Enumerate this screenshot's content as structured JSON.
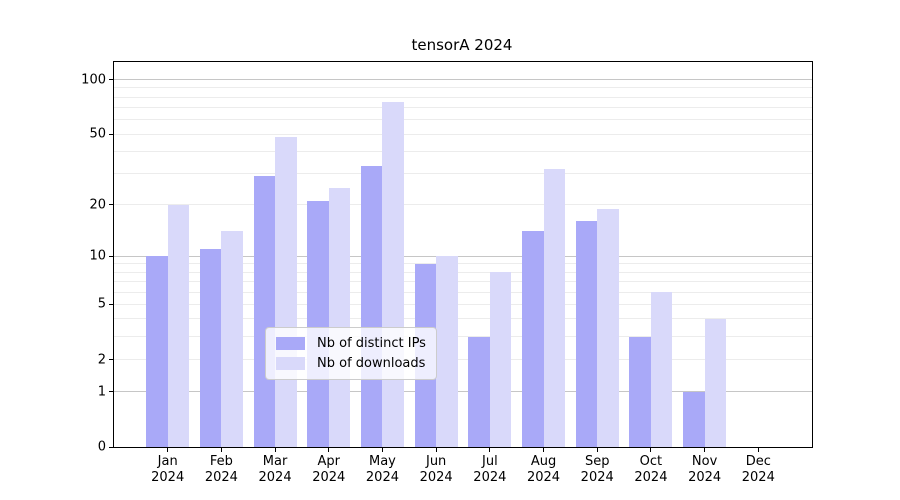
{
  "title": "tensorA 2024",
  "axes": {
    "months": [
      "Jan",
      "Feb",
      "Mar",
      "Apr",
      "May",
      "Jun",
      "Jul",
      "Aug",
      "Sep",
      "Oct",
      "Nov",
      "Dec"
    ],
    "x_year": "2024",
    "y_tick_labels": [
      "100",
      "50",
      "20",
      "10",
      "5",
      "2",
      "1",
      "0"
    ],
    "y_major_gridlines": [
      1,
      10,
      100
    ],
    "y_minor_gridlines": [
      2,
      3,
      4,
      5,
      6,
      7,
      8,
      9,
      20,
      30,
      40,
      50,
      60,
      70,
      80,
      90
    ]
  },
  "legend": {
    "items": [
      {
        "label": "Nb of distinct IPs",
        "color": "#a9a9f8"
      },
      {
        "label": "Nb of downloads",
        "color": "#d9d9fa"
      }
    ]
  },
  "chart_data": {
    "type": "bar",
    "title": "tensorA 2024",
    "categories": [
      "Jan 2024",
      "Feb 2024",
      "Mar 2024",
      "Apr 2024",
      "May 2024",
      "Jun 2024",
      "Jul 2024",
      "Aug 2024",
      "Sep 2024",
      "Oct 2024",
      "Nov 2024",
      "Dec 2024"
    ],
    "series": [
      {
        "name": "Nb of distinct IPs",
        "color": "#a9a9f8",
        "values": [
          10,
          11,
          29,
          21,
          33,
          9,
          3,
          14,
          16,
          3,
          1,
          0
        ]
      },
      {
        "name": "Nb of downloads",
        "color": "#d9d9fa",
        "values": [
          20,
          14,
          48,
          25,
          75,
          10,
          8,
          32,
          19,
          6,
          4,
          0
        ]
      }
    ],
    "xlabel": "",
    "ylabel": "",
    "yscale": "log1p",
    "ylim": [
      0,
      125
    ],
    "yticks": [
      0,
      1,
      2,
      5,
      10,
      20,
      50,
      100
    ],
    "grid": true,
    "legend_position": "lower center"
  },
  "colors": {
    "background": "#ffffff",
    "spine": "#000000",
    "major_grid": "#c6c6c6",
    "minor_grid": "#ececec",
    "text": "#000000",
    "legend_border": "#cccccc"
  }
}
